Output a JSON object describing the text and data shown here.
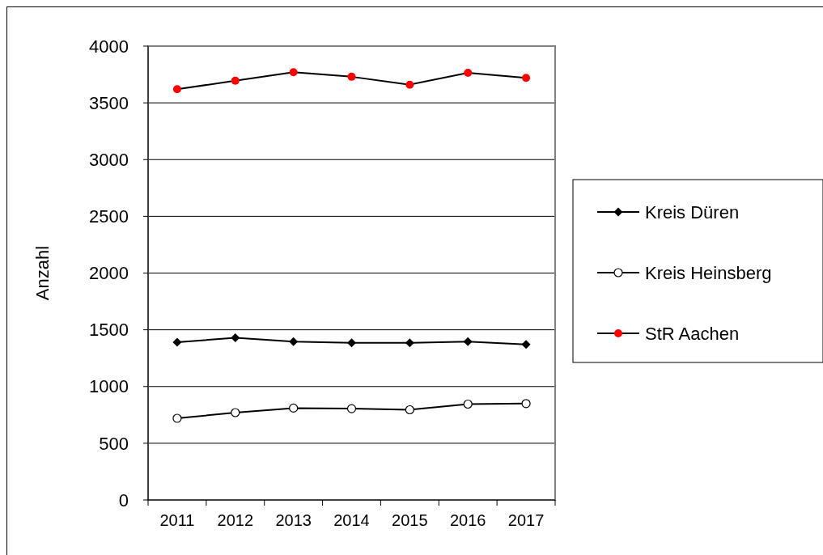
{
  "chart_data": {
    "type": "line",
    "ylabel": "Anzahl",
    "categories": [
      "2011",
      "2012",
      "2013",
      "2014",
      "2015",
      "2016",
      "2017"
    ],
    "series": [
      {
        "name": "Kreis Düren",
        "color": "#000000",
        "marker": "diamond",
        "values": [
          1390,
          1430,
          1395,
          1385,
          1385,
          1395,
          1370
        ]
      },
      {
        "name": "Kreis Heinsberg",
        "color": "#000000",
        "marker": "circle",
        "values": [
          720,
          770,
          810,
          805,
          795,
          845,
          850
        ]
      },
      {
        "name": "StR Aachen",
        "color": "#ff0000",
        "marker": "circle",
        "values": [
          3620,
          3695,
          3770,
          3730,
          3660,
          3765,
          3720
        ]
      }
    ],
    "ylim": [
      0,
      4000
    ],
    "yticks": [
      0,
      500,
      1000,
      1500,
      2000,
      2500,
      3000,
      3500,
      4000
    ],
    "grid": "y",
    "legend": "right"
  }
}
